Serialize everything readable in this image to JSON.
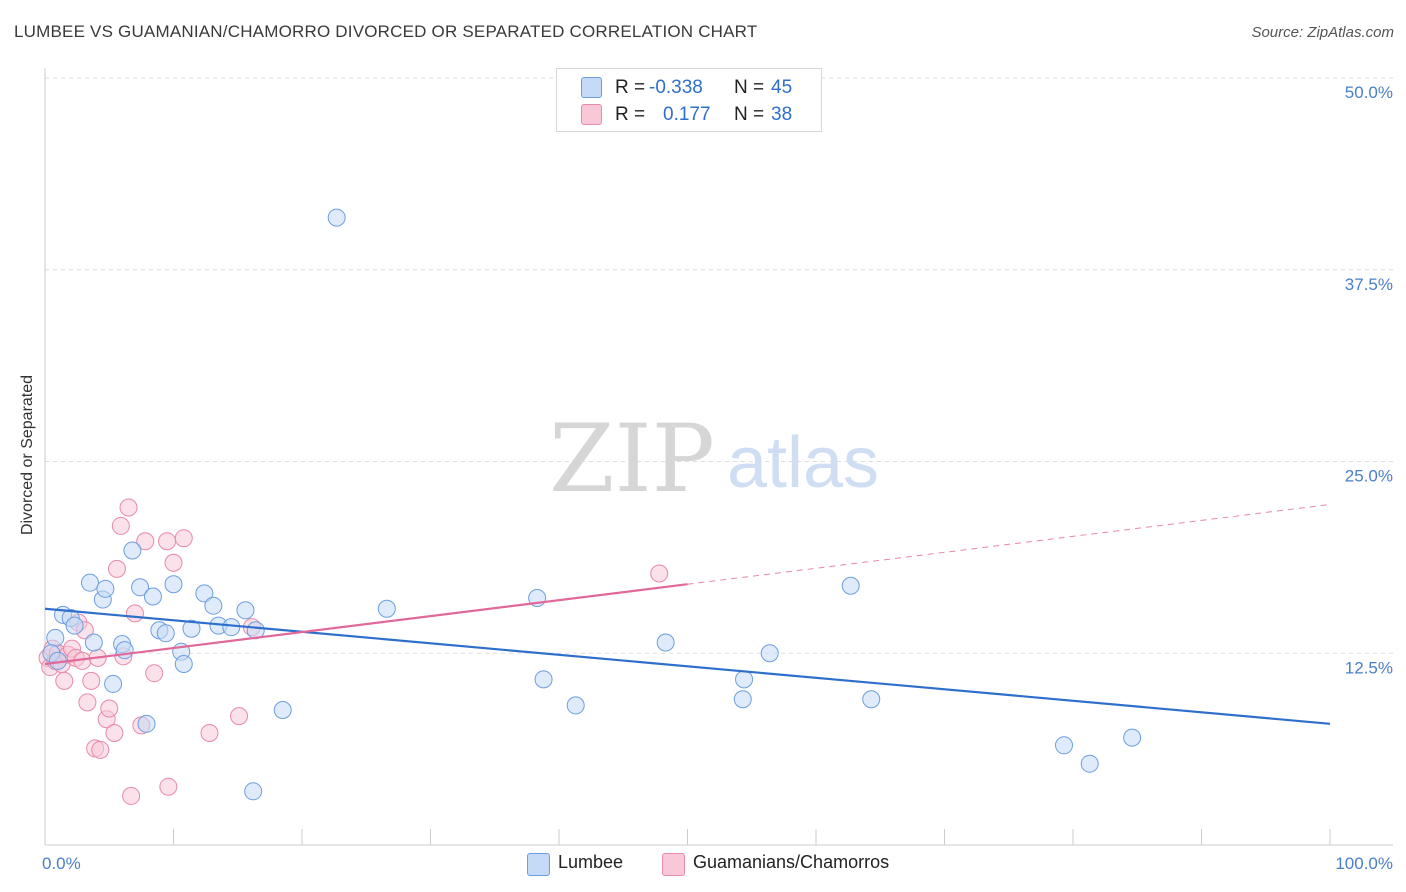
{
  "title": "LUMBEE VS GUAMANIAN/CHAMORRO DIVORCED OR SEPARATED CORRELATION CHART",
  "source": "Source: ZipAtlas.com",
  "watermark": {
    "zip": "ZIP",
    "atlas": "atlas"
  },
  "colors": {
    "blue_fill": "#c5daf6",
    "blue_stroke": "#6d9ee0",
    "blue_line": "#2f6fcc",
    "pink_fill": "#f8c8d7",
    "pink_stroke": "#e88aa9",
    "pink_line": "#e0699a",
    "grid": "#dddddd",
    "tick_text": "#4a7fc9"
  },
  "stats": [
    {
      "r_label": "R =",
      "r_value": "-0.338",
      "n_label": "N =",
      "n_value": "45"
    },
    {
      "r_label": "R =",
      "r_value": "0.177",
      "n_label": "N =",
      "n_value": "38"
    }
  ],
  "legend": [
    {
      "label": "Lumbee"
    },
    {
      "label": "Guamanians/Chamorros"
    }
  ],
  "chart_data": {
    "type": "scatter",
    "title": "LUMBEE VS GUAMANIAN/CHAMORRO DIVORCED OR SEPARATED CORRELATION CHART",
    "xlabel": "",
    "ylabel": "Divorced or Separated",
    "xlim": [
      0,
      100
    ],
    "ylim": [
      0,
      50
    ],
    "x_tick_labels": [
      "0.0%",
      "100.0%"
    ],
    "y_ticks": [
      12.5,
      25.0,
      37.5,
      50.0
    ],
    "y_tick_labels": [
      "12.5%",
      "25.0%",
      "37.5%",
      "50.0%"
    ],
    "grid": true,
    "legend_position": "bottom-center",
    "series": [
      {
        "name": "Lumbee",
        "color": "#6d9ee0",
        "points": [
          [
            22.7,
            40.9
          ],
          [
            0.8,
            13.5
          ],
          [
            1.4,
            15.0
          ],
          [
            2.0,
            14.8
          ],
          [
            2.3,
            14.3
          ],
          [
            3.5,
            17.1
          ],
          [
            3.8,
            13.2
          ],
          [
            4.5,
            16.0
          ],
          [
            4.7,
            16.7
          ],
          [
            5.3,
            10.5
          ],
          [
            6.0,
            13.1
          ],
          [
            6.2,
            12.7
          ],
          [
            6.8,
            19.2
          ],
          [
            7.4,
            16.8
          ],
          [
            7.9,
            7.9
          ],
          [
            8.4,
            16.2
          ],
          [
            8.9,
            14.0
          ],
          [
            9.4,
            13.8
          ],
          [
            10.0,
            17.0
          ],
          [
            10.6,
            12.6
          ],
          [
            10.8,
            11.8
          ],
          [
            11.4,
            14.1
          ],
          [
            12.4,
            16.4
          ],
          [
            13.1,
            15.6
          ],
          [
            13.5,
            14.3
          ],
          [
            14.5,
            14.2
          ],
          [
            15.6,
            15.3
          ],
          [
            16.4,
            14.0
          ],
          [
            16.2,
            3.5
          ],
          [
            18.5,
            8.8
          ],
          [
            26.6,
            15.4
          ],
          [
            38.3,
            16.1
          ],
          [
            38.8,
            10.8
          ],
          [
            41.3,
            9.1
          ],
          [
            48.3,
            13.2
          ],
          [
            54.4,
            10.8
          ],
          [
            54.3,
            9.5
          ],
          [
            56.4,
            12.5
          ],
          [
            62.7,
            16.9
          ],
          [
            64.3,
            9.5
          ],
          [
            79.3,
            6.5
          ],
          [
            81.3,
            5.3
          ],
          [
            84.6,
            7.0
          ],
          [
            0.5,
            12.5
          ],
          [
            1.0,
            12.0
          ]
        ],
        "trend": {
          "x": [
            0,
            100
          ],
          "y": [
            15.4,
            7.9
          ]
        }
      },
      {
        "name": "Guamanians/Chamorros",
        "color": "#e88aa9",
        "points": [
          [
            0.2,
            12.2
          ],
          [
            0.4,
            11.6
          ],
          [
            0.6,
            12.8
          ],
          [
            0.8,
            12.0
          ],
          [
            1.0,
            12.5
          ],
          [
            1.3,
            11.8
          ],
          [
            1.5,
            10.7
          ],
          [
            1.8,
            12.4
          ],
          [
            2.1,
            12.8
          ],
          [
            2.4,
            12.2
          ],
          [
            2.6,
            14.5
          ],
          [
            2.9,
            12.0
          ],
          [
            3.1,
            14.0
          ],
          [
            3.3,
            9.3
          ],
          [
            3.6,
            10.7
          ],
          [
            3.9,
            6.3
          ],
          [
            4.3,
            6.2
          ],
          [
            4.1,
            12.2
          ],
          [
            4.8,
            8.2
          ],
          [
            5.0,
            8.9
          ],
          [
            5.4,
            7.3
          ],
          [
            5.6,
            18.0
          ],
          [
            6.1,
            12.3
          ],
          [
            6.5,
            22.0
          ],
          [
            5.9,
            20.8
          ],
          [
            6.7,
            3.2
          ],
          [
            7.0,
            15.1
          ],
          [
            7.5,
            7.8
          ],
          [
            7.8,
            19.8
          ],
          [
            8.5,
            11.2
          ],
          [
            9.5,
            19.8
          ],
          [
            9.6,
            3.8
          ],
          [
            10.0,
            18.4
          ],
          [
            10.8,
            20.0
          ],
          [
            12.8,
            7.3
          ],
          [
            15.1,
            8.4
          ],
          [
            16.1,
            14.2
          ],
          [
            47.8,
            17.7
          ]
        ],
        "trend": {
          "x": [
            0,
            50
          ],
          "y": [
            11.8,
            17.0
          ]
        },
        "trend_dashed": {
          "x": [
            50,
            100
          ],
          "y": [
            17.0,
            22.2
          ]
        }
      }
    ]
  }
}
